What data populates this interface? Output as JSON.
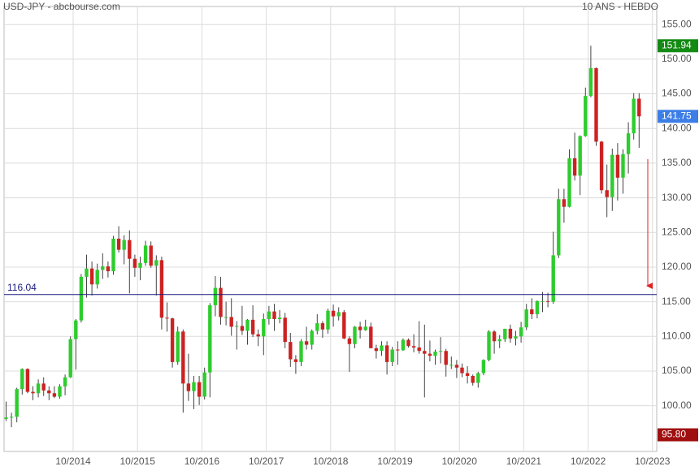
{
  "chart_data": {
    "type": "candlestick",
    "title": "USD-JPY - abcbourse.com",
    "subtitle": "10 ANS - HEBDO",
    "categories": [
      null,
      null,
      null,
      null,
      null,
      null,
      null,
      null,
      null,
      null,
      null,
      null,
      null,
      null,
      "10/2014",
      null,
      null,
      null,
      null,
      null,
      null,
      null,
      null,
      null,
      null,
      null,
      "10/2015",
      null,
      null,
      null,
      null,
      null,
      null,
      null,
      null,
      null,
      null,
      null,
      "10/2016",
      null,
      null,
      null,
      null,
      null,
      null,
      null,
      null,
      null,
      null,
      null,
      "10/2017",
      null,
      null,
      null,
      null,
      null,
      null,
      null,
      null,
      null,
      null,
      null,
      "10/2018",
      null,
      null,
      null,
      null,
      null,
      null,
      null,
      null,
      null,
      null,
      null,
      "10/2019",
      null,
      null,
      null,
      null,
      null,
      null,
      null,
      null,
      null,
      null,
      null,
      "10/2020",
      null,
      null,
      null,
      null,
      null,
      null,
      null,
      null,
      null,
      null,
      null,
      "10/2021",
      null,
      null,
      null,
      null,
      null,
      null,
      null,
      null,
      null,
      null,
      null,
      "10/2022",
      null,
      null,
      null,
      null,
      null,
      null,
      null,
      null,
      null,
      null,
      null,
      "10/2023"
    ],
    "open": [
      97.9,
      98.1,
      98.3,
      98.4,
      102.4,
      105.3,
      102.0,
      101.8,
      103.2,
      102.2,
      101.8,
      101.3,
      102.8,
      104.1,
      109.6,
      112.3,
      118.6,
      119.8,
      117.5,
      119.6,
      120.1,
      119.4,
      124.1,
      122.5,
      123.9,
      121.2,
      119.9,
      120.6,
      123.1,
      120.2,
      121.0,
      112.7,
      112.6,
      106.3,
      110.7,
      103.2,
      102.1,
      103.4,
      101.3,
      104.8,
      114.5,
      117.0,
      112.8,
      112.8,
      111.4,
      111.5,
      110.8,
      112.4,
      110.3,
      110.0,
      112.5,
      113.6,
      112.5,
      112.7,
      109.2,
      106.7,
      106.3,
      109.3,
      108.8,
      110.8,
      111.9,
      111.0,
      113.7,
      112.9,
      113.5,
      109.7,
      108.9,
      111.4,
      110.9,
      111.4,
      108.3,
      107.9,
      108.7,
      106.3,
      108.1,
      108.0,
      109.5,
      108.6,
      108.4,
      107.9,
      107.5,
      107.2,
      107.8,
      107.9,
      105.9,
      105.9,
      105.5,
      104.7,
      104.3,
      103.3,
      104.7,
      106.6,
      110.7,
      109.3,
      109.6,
      111.1,
      109.7,
      110.0,
      111.3,
      113.9,
      113.2,
      115.1,
      115.1,
      115.0,
      121.7,
      129.8,
      128.7,
      135.7,
      133.2,
      138.9,
      144.7,
      148.7,
      138.1,
      131.1,
      130.1,
      136.2,
      132.9,
      136.3,
      139.3,
      144.3,
      null,
      null,
      null
    ],
    "high": [
      99.1,
      100.6,
      99.0,
      102.6,
      105.4,
      105.4,
      102.8,
      103.8,
      104.1,
      102.8,
      102.8,
      103.1,
      104.5,
      110.0,
      112.5,
      119.0,
      121.8,
      120.8,
      120.5,
      122.0,
      120.8,
      124.5,
      125.9,
      124.6,
      125.3,
      121.8,
      121.5,
      123.8,
      123.7,
      121.7,
      121.5,
      114.9,
      112.7,
      111.4,
      111.0,
      107.5,
      104.3,
      104.3,
      105.5,
      114.8,
      118.7,
      118.6,
      115.0,
      115.5,
      112.2,
      114.4,
      112.5,
      114.5,
      111.0,
      113.3,
      114.4,
      114.7,
      113.8,
      113.4,
      110.5,
      107.3,
      109.6,
      111.4,
      111.0,
      113.2,
      112.2,
      114.0,
      114.6,
      114.2,
      113.8,
      110.0,
      111.5,
      112.1,
      112.4,
      112.0,
      108.8,
      109.3,
      109.3,
      108.5,
      109.3,
      109.7,
      109.7,
      110.3,
      112.2,
      111.7,
      109.4,
      108.1,
      109.9,
      108.2,
      107.1,
      106.6,
      106.1,
      105.7,
      104.5,
      104.9,
      106.7,
      110.9,
      110.9,
      110.2,
      111.1,
      111.7,
      110.8,
      112.1,
      114.7,
      115.5,
      115.2,
      116.4,
      116.3,
      125.1,
      131.3,
      131.3,
      137.0,
      139.4,
      139.0,
      145.9,
      151.94,
      148.8,
      138.2,
      134.8,
      137.1,
      137.9,
      137.0,
      140.9,
      145.1,
      145.1,
      null,
      null,
      null
    ],
    "low": [
      96.1,
      97.8,
      96.9,
      97.6,
      101.6,
      101.8,
      100.8,
      101.2,
      101.4,
      100.8,
      101.1,
      101.0,
      101.5,
      104.0,
      105.2,
      112.0,
      115.6,
      115.9,
      116.9,
      118.3,
      118.5,
      118.9,
      122.1,
      120.4,
      116.2,
      118.6,
      118.1,
      120.2,
      119.9,
      115.9,
      111.0,
      110.7,
      105.5,
      105.9,
      99.0,
      100.7,
      99.5,
      100.1,
      100.9,
      101.2,
      112.9,
      111.7,
      111.6,
      110.1,
      108.1,
      110.2,
      108.8,
      109.9,
      108.6,
      107.3,
      111.7,
      110.8,
      111.9,
      108.3,
      105.6,
      104.6,
      105.7,
      108.1,
      108.1,
      110.3,
      109.8,
      110.4,
      111.4,
      112.3,
      109.6,
      104.9,
      108.3,
      109.7,
      110.8,
      108.3,
      106.8,
      107.2,
      104.5,
      105.7,
      105.9,
      107.9,
      108.4,
      107.7,
      107.5,
      101.2,
      106.4,
      105.9,
      106.1,
      104.2,
      105.3,
      104.0,
      104.1,
      103.2,
      102.9,
      102.6,
      104.4,
      106.4,
      107.5,
      108.3,
      109.2,
      109.1,
      108.7,
      109.1,
      110.9,
      112.5,
      112.6,
      113.5,
      114.2,
      114.7,
      121.3,
      126.4,
      128.6,
      132.5,
      130.4,
      138.8,
      144.5,
      137.5,
      130.6,
      127.2,
      128.1,
      129.6,
      130.6,
      133.5,
      138.4,
      137.2,
      null,
      null,
      null
    ],
    "close": [
      98.1,
      98.3,
      98.4,
      102.4,
      105.3,
      102.0,
      101.8,
      103.2,
      102.2,
      101.8,
      101.3,
      102.8,
      104.1,
      109.6,
      112.3,
      118.6,
      119.8,
      117.5,
      119.6,
      120.1,
      119.4,
      124.1,
      122.5,
      123.9,
      121.2,
      119.9,
      120.6,
      123.1,
      120.2,
      121.0,
      112.7,
      112.6,
      106.3,
      110.7,
      103.2,
      102.1,
      103.4,
      101.3,
      104.8,
      114.5,
      117.0,
      112.8,
      112.8,
      111.4,
      111.5,
      110.8,
      112.4,
      110.3,
      110.0,
      112.5,
      113.6,
      112.5,
      112.7,
      109.2,
      106.7,
      106.3,
      109.3,
      108.8,
      110.8,
      111.9,
      111.0,
      113.7,
      112.9,
      113.5,
      109.7,
      108.9,
      111.4,
      110.9,
      111.4,
      108.3,
      107.9,
      108.7,
      106.3,
      108.1,
      108.0,
      109.5,
      108.6,
      108.4,
      107.9,
      107.5,
      107.2,
      107.8,
      107.9,
      105.9,
      105.9,
      105.5,
      104.7,
      104.3,
      103.3,
      104.7,
      106.6,
      110.7,
      109.3,
      109.6,
      111.1,
      109.7,
      110.0,
      111.3,
      113.9,
      113.2,
      115.1,
      115.1,
      115.0,
      121.7,
      129.8,
      128.7,
      135.7,
      133.2,
      138.9,
      144.7,
      148.7,
      138.1,
      131.1,
      130.1,
      136.2,
      132.9,
      136.3,
      139.3,
      144.3,
      141.75,
      null,
      null,
      null
    ],
    "up_color": "#2ecc2e",
    "down_color": "#cc2222",
    "ylim": [
      93.4,
      157.6
    ],
    "yticks": [
      {
        "value": 100,
        "label": "100.00"
      },
      {
        "value": 105,
        "label": "105.00"
      },
      {
        "value": 110,
        "label": "110.00"
      },
      {
        "value": 115,
        "label": "115.00"
      },
      {
        "value": 120,
        "label": "120.00"
      },
      {
        "value": 125,
        "label": "125.00"
      },
      {
        "value": 130,
        "label": "130.00"
      },
      {
        "value": 135,
        "label": "135.00"
      },
      {
        "value": 140,
        "label": "140.00"
      },
      {
        "value": 145,
        "label": "145.00"
      },
      {
        "value": 150,
        "label": "150.00"
      },
      {
        "value": 155,
        "label": "155.00"
      }
    ],
    "grid": true,
    "hline": {
      "value": 116.04,
      "color": "#1a1a80"
    },
    "price_tags": [
      {
        "value": 151.94,
        "color": "#138a13"
      },
      {
        "value": 141.75,
        "color": "#3d7ee6"
      },
      {
        "value": 95.8,
        "label": "95.80",
        "color": "#a00f0f"
      }
    ]
  }
}
